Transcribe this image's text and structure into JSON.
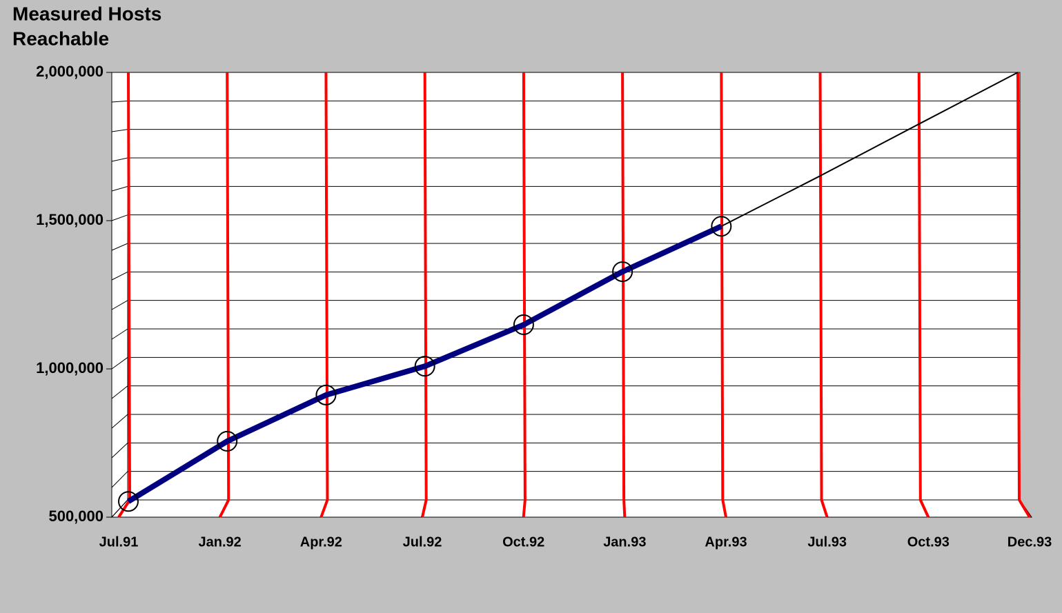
{
  "chart_data": {
    "type": "line",
    "y_label_lines": [
      "Measured Hosts",
      "Reachable"
    ],
    "categories": [
      "Jul.91",
      "Jan.92",
      "Apr.92",
      "Jul.92",
      "Oct.92",
      "Jan.93",
      "Apr.93",
      "Jul.93",
      "Oct.93",
      "Dec.93"
    ],
    "series": [
      {
        "color": "#000080",
        "markers": true,
        "values": [
          553000,
          756000,
          912000,
          1009000,
          1149000,
          1328000,
          1481000,
          null,
          null,
          null
        ]
      },
      {
        "color": "#000000",
        "markers": false,
        "values": [
          null,
          null,
          null,
          null,
          null,
          null,
          1481000,
          1651000,
          1826000,
          2000000
        ]
      }
    ],
    "ylim": [
      500000,
      2000000
    ],
    "yticks": [
      {
        "value": 500000,
        "label": "500,000"
      },
      {
        "value": 1000000,
        "label": "1,000,000"
      },
      {
        "value": 1500000,
        "label": "1,500,000"
      },
      {
        "value": 2000000,
        "label": "2,000,000"
      }
    ],
    "grid_yticks": [
      500000,
      600000,
      700000,
      800000,
      900000,
      1000000,
      1100000,
      1200000,
      1300000,
      1400000,
      1500000,
      1600000,
      1700000,
      1800000,
      1900000,
      2000000
    ],
    "drop_line_color": "#ff0000",
    "background": "#c0c0c0"
  }
}
